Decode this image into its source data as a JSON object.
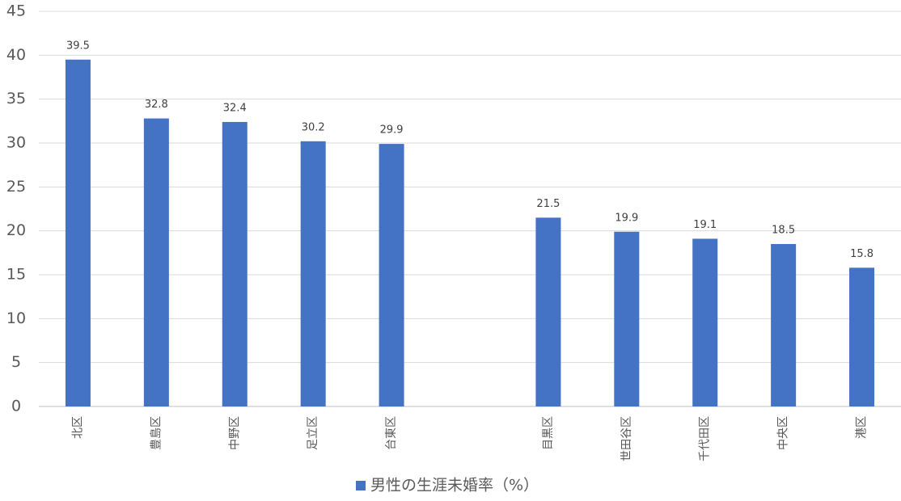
{
  "chart_data": {
    "type": "bar",
    "categories": [
      "北区",
      "豊島区",
      "中野区",
      "足立区",
      "台東区",
      null,
      "目黒区",
      "世田谷区",
      "千代田区",
      "中央区",
      "港区"
    ],
    "series": [
      {
        "name": "男性の生涯未婚率（%）",
        "color": "#4472c4",
        "values": [
          39.5,
          32.8,
          32.4,
          30.2,
          29.9,
          null,
          21.5,
          19.9,
          19.1,
          18.5,
          15.8
        ]
      }
    ],
    "ylim": [
      0,
      45
    ],
    "yticks": [
      0,
      5,
      10,
      15,
      20,
      25,
      30,
      35,
      40,
      45
    ],
    "grid": true,
    "legend": "bottom",
    "data_labels": true
  }
}
